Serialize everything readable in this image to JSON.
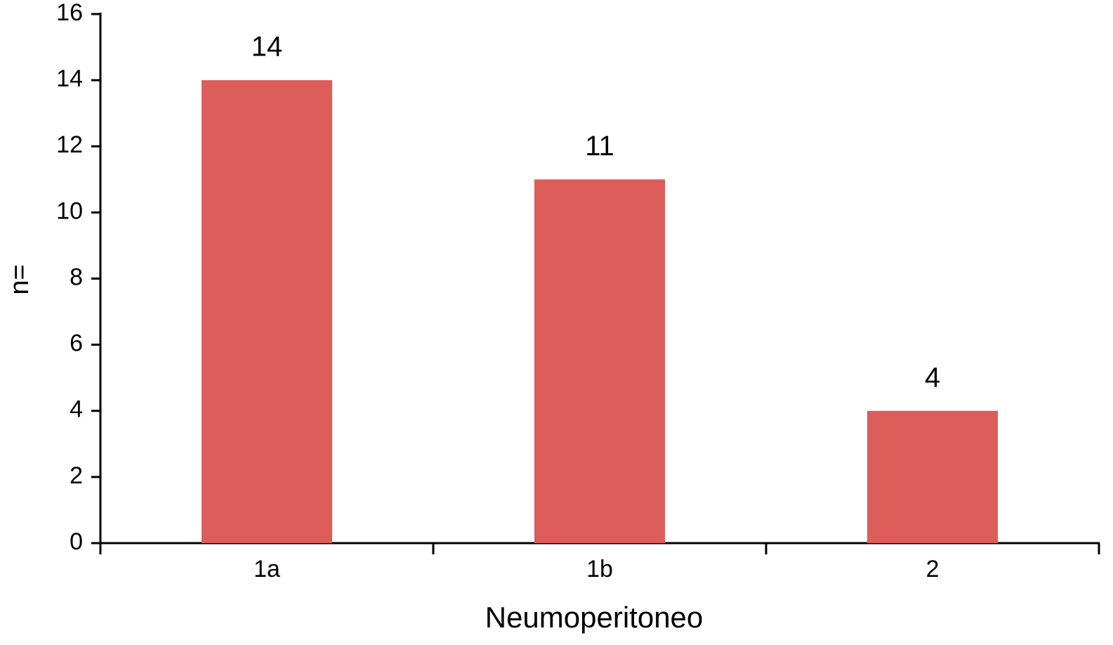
{
  "chart_data": {
    "type": "bar",
    "categories": [
      "1a",
      "1b",
      "2"
    ],
    "values": [
      14,
      11,
      4
    ],
    "color": "#dc5d5a",
    "xlabel": "Neumoperitoneo",
    "ylabel": "n=",
    "ylim": [
      0,
      16
    ],
    "yticks": [
      0,
      2,
      4,
      6,
      8,
      10,
      12,
      14,
      16
    ]
  }
}
